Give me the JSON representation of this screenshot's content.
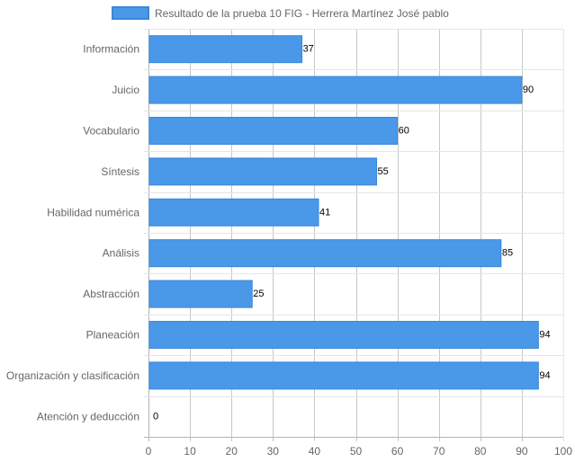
{
  "chart_data": {
    "type": "bar",
    "orientation": "horizontal",
    "categories": [
      "Información",
      "Juicio",
      "Vocabulario",
      "Síntesis",
      "Habilidad numérica",
      "Análisis",
      "Abstracción",
      "Planeación",
      "Organización y clasificación",
      "Atención y deducción"
    ],
    "series": [
      {
        "name": "Resultado de la prueba 10 FIG - Herrera Martínez José pablo",
        "values": [
          37,
          90,
          60,
          55,
          41,
          85,
          25,
          94,
          94,
          0
        ]
      }
    ],
    "xlim": [
      0,
      100
    ],
    "xticks": [
      0,
      10,
      20,
      30,
      40,
      50,
      60,
      70,
      80,
      90,
      100
    ],
    "grid": true,
    "legend_position": "top-center",
    "colors": {
      "bar_fill": "#4a98e8",
      "bar_stroke": "#3a87dc",
      "grid": "#e5e5e5",
      "axis": "#b4b4b4"
    }
  }
}
